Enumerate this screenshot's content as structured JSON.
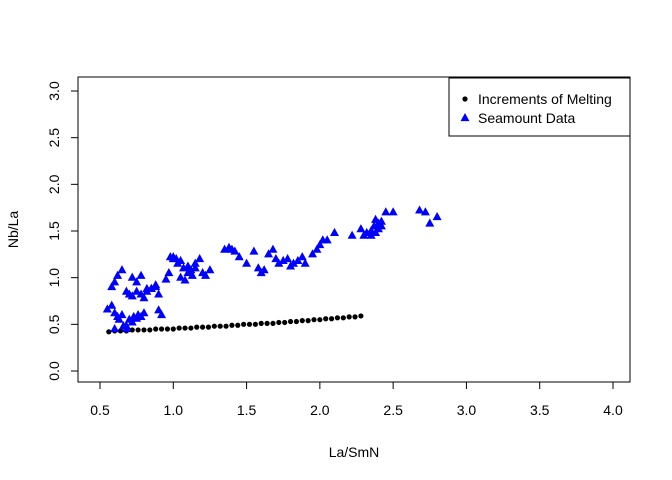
{
  "chart_data": {
    "type": "scatter",
    "xlabel": "La/SmN",
    "ylabel": "Nb/La",
    "xlim": [
      0.5,
      4.0
    ],
    "ylim": [
      0.0,
      3.0
    ],
    "xticks": [
      "0.5",
      "1.0",
      "1.5",
      "2.0",
      "2.5",
      "3.0",
      "3.5",
      "4.0"
    ],
    "yticks": [
      "0.0",
      "0.5",
      "1.0",
      "1.5",
      "2.0",
      "2.5",
      "3.0"
    ],
    "legend_position": "top-right",
    "legend": [
      "Increments of Melting",
      "Seamount Data"
    ],
    "series": [
      {
        "name": "Increments of Melting",
        "marker": "circle",
        "color": "#000000",
        "x": [
          0.56,
          0.6,
          0.64,
          0.68,
          0.72,
          0.76,
          0.8,
          0.84,
          0.88,
          0.92,
          0.96,
          1.0,
          1.04,
          1.08,
          1.12,
          1.16,
          1.2,
          1.24,
          1.28,
          1.32,
          1.36,
          1.4,
          1.44,
          1.48,
          1.52,
          1.56,
          1.6,
          1.64,
          1.68,
          1.72,
          1.76,
          1.8,
          1.84,
          1.88,
          1.92,
          1.96,
          2.0,
          2.04,
          2.08,
          2.12,
          2.16,
          2.2,
          2.24,
          2.28
        ],
        "y": [
          0.42,
          0.43,
          0.43,
          0.43,
          0.44,
          0.44,
          0.44,
          0.44,
          0.45,
          0.45,
          0.45,
          0.45,
          0.46,
          0.46,
          0.46,
          0.47,
          0.47,
          0.47,
          0.48,
          0.48,
          0.48,
          0.49,
          0.49,
          0.5,
          0.5,
          0.5,
          0.51,
          0.51,
          0.51,
          0.52,
          0.52,
          0.53,
          0.53,
          0.54,
          0.54,
          0.55,
          0.55,
          0.56,
          0.56,
          0.57,
          0.57,
          0.58,
          0.58,
          0.59
        ]
      },
      {
        "name": "Seamount Data",
        "marker": "triangle",
        "color": "#0000ff",
        "x": [
          0.55,
          0.58,
          0.6,
          0.62,
          0.63,
          0.65,
          0.66,
          0.68,
          0.7,
          0.72,
          0.73,
          0.75,
          0.76,
          0.78,
          0.8,
          0.82,
          0.85,
          0.88,
          0.9,
          0.92,
          0.58,
          0.6,
          0.62,
          0.65,
          0.68,
          0.7,
          0.72,
          0.75,
          0.78,
          0.8,
          0.85,
          0.88,
          0.9,
          0.6,
          0.68,
          0.72,
          0.75,
          0.78,
          0.82,
          0.95,
          0.97,
          1.0,
          1.02,
          1.05,
          1.08,
          1.1,
          1.12,
          1.15,
          1.18,
          1.2,
          1.22,
          1.25,
          0.98,
          1.0,
          1.03,
          1.05,
          1.07,
          1.1,
          1.13,
          1.15,
          1.35,
          1.38,
          1.4,
          1.42,
          1.45,
          1.5,
          1.55,
          1.58,
          1.6,
          1.62,
          1.65,
          1.68,
          1.7,
          1.72,
          1.75,
          1.78,
          1.8,
          1.82,
          1.85,
          1.88,
          1.9,
          1.95,
          1.98,
          2.0,
          2.02,
          2.05,
          2.1,
          2.22,
          2.28,
          2.3,
          2.32,
          2.35,
          2.37,
          2.38,
          2.4,
          2.42,
          2.45,
          2.5,
          2.68,
          2.72,
          2.75,
          2.8,
          2.38,
          2.4,
          2.35,
          2.42
        ],
        "y": [
          0.66,
          0.7,
          0.62,
          0.58,
          0.55,
          0.6,
          0.48,
          0.45,
          0.55,
          0.52,
          0.58,
          0.56,
          0.6,
          0.58,
          0.62,
          0.85,
          0.88,
          0.9,
          0.65,
          0.6,
          0.9,
          0.95,
          1.02,
          1.08,
          0.85,
          0.82,
          0.8,
          0.85,
          0.82,
          0.78,
          0.88,
          0.92,
          0.82,
          0.45,
          0.48,
          1.0,
          0.95,
          1.02,
          0.88,
          0.98,
          1.05,
          1.22,
          1.2,
          1.0,
          0.97,
          1.12,
          1.08,
          1.1,
          1.2,
          1.05,
          1.02,
          1.08,
          1.22,
          1.2,
          1.15,
          1.18,
          1.1,
          1.05,
          1.02,
          1.15,
          1.3,
          1.32,
          1.3,
          1.28,
          1.22,
          1.15,
          1.28,
          1.1,
          1.05,
          1.08,
          1.25,
          1.3,
          1.2,
          1.15,
          1.18,
          1.2,
          1.12,
          1.15,
          1.18,
          1.22,
          1.15,
          1.25,
          1.3,
          1.35,
          1.4,
          1.4,
          1.48,
          1.45,
          1.52,
          1.45,
          1.48,
          1.5,
          1.55,
          1.62,
          1.58,
          1.55,
          1.7,
          1.7,
          1.72,
          1.7,
          1.58,
          1.65,
          1.48,
          1.52,
          1.45,
          1.6
        ]
      }
    ]
  }
}
